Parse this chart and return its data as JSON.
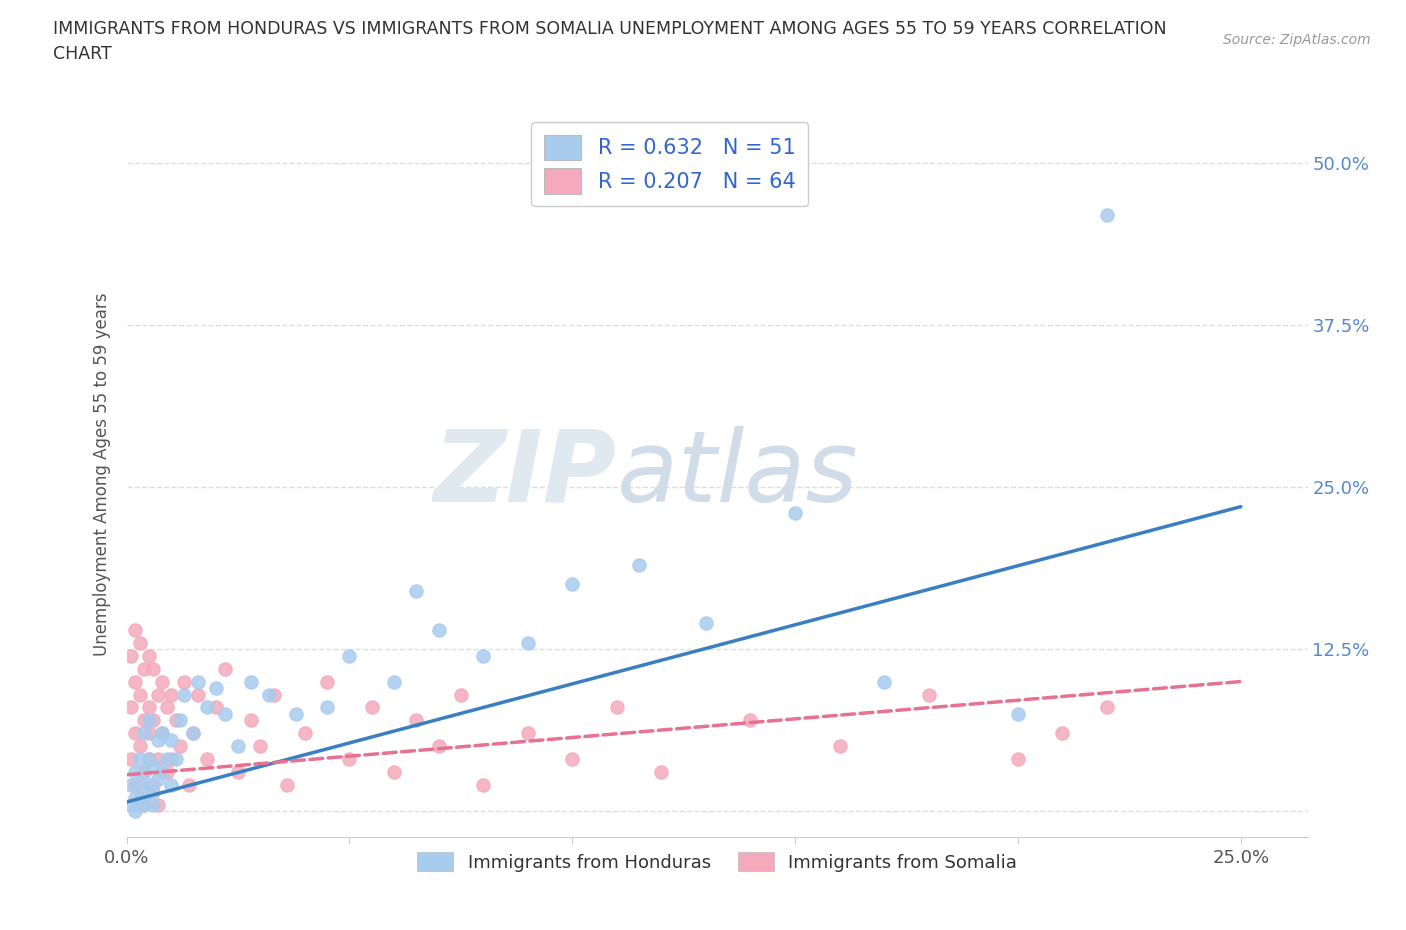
{
  "title_line1": "IMMIGRANTS FROM HONDURAS VS IMMIGRANTS FROM SOMALIA UNEMPLOYMENT AMONG AGES 55 TO 59 YEARS CORRELATION",
  "title_line2": "CHART",
  "source": "Source: ZipAtlas.com",
  "ylabel": "Unemployment Among Ages 55 to 59 years",
  "xlim": [
    0.0,
    0.265
  ],
  "ylim": [
    -0.02,
    0.54
  ],
  "R_honduras": 0.632,
  "N_honduras": 51,
  "R_somalia": 0.207,
  "N_somalia": 64,
  "honduras_color": "#A8CCEE",
  "somalia_color": "#F4AABC",
  "trend_honduras_color": "#3A7FC1",
  "trend_somalia_color": "#E87090",
  "legend_label_honduras": "Immigrants from Honduras",
  "legend_label_somalia": "Immigrants from Somalia",
  "background_color": "#FFFFFF",
  "grid_color": "#DDDDDD",
  "honduras_x": [
    0.001,
    0.001,
    0.002,
    0.002,
    0.002,
    0.003,
    0.003,
    0.003,
    0.004,
    0.004,
    0.004,
    0.004,
    0.005,
    0.005,
    0.005,
    0.006,
    0.006,
    0.006,
    0.007,
    0.007,
    0.008,
    0.008,
    0.009,
    0.01,
    0.01,
    0.011,
    0.012,
    0.013,
    0.015,
    0.016,
    0.018,
    0.02,
    0.022,
    0.025,
    0.028,
    0.032,
    0.038,
    0.045,
    0.05,
    0.06,
    0.065,
    0.07,
    0.08,
    0.09,
    0.1,
    0.115,
    0.13,
    0.15,
    0.17,
    0.2,
    0.22
  ],
  "honduras_y": [
    0.005,
    0.02,
    0.01,
    0.03,
    0.0,
    0.02,
    0.005,
    0.04,
    0.01,
    0.03,
    0.005,
    0.06,
    0.02,
    0.04,
    0.07,
    0.015,
    0.035,
    0.005,
    0.025,
    0.055,
    0.03,
    0.06,
    0.04,
    0.02,
    0.055,
    0.04,
    0.07,
    0.09,
    0.06,
    0.1,
    0.08,
    0.095,
    0.075,
    0.05,
    0.1,
    0.09,
    0.075,
    0.08,
    0.12,
    0.1,
    0.17,
    0.14,
    0.12,
    0.13,
    0.175,
    0.19,
    0.145,
    0.23,
    0.1,
    0.075,
    0.46
  ],
  "somalia_x": [
    0.001,
    0.001,
    0.001,
    0.002,
    0.002,
    0.002,
    0.002,
    0.003,
    0.003,
    0.003,
    0.003,
    0.004,
    0.004,
    0.004,
    0.004,
    0.005,
    0.005,
    0.005,
    0.005,
    0.006,
    0.006,
    0.006,
    0.007,
    0.007,
    0.007,
    0.008,
    0.008,
    0.009,
    0.009,
    0.01,
    0.01,
    0.011,
    0.012,
    0.013,
    0.014,
    0.015,
    0.016,
    0.018,
    0.02,
    0.022,
    0.025,
    0.028,
    0.03,
    0.033,
    0.036,
    0.04,
    0.045,
    0.05,
    0.055,
    0.06,
    0.065,
    0.07,
    0.075,
    0.08,
    0.09,
    0.1,
    0.11,
    0.12,
    0.14,
    0.16,
    0.18,
    0.2,
    0.21,
    0.22
  ],
  "somalia_y": [
    0.04,
    0.08,
    0.12,
    0.02,
    0.06,
    0.1,
    0.14,
    0.01,
    0.05,
    0.09,
    0.13,
    0.03,
    0.07,
    0.11,
    0.005,
    0.04,
    0.08,
    0.12,
    0.06,
    0.02,
    0.07,
    0.11,
    0.04,
    0.09,
    0.005,
    0.06,
    0.1,
    0.03,
    0.08,
    0.04,
    0.09,
    0.07,
    0.05,
    0.1,
    0.02,
    0.06,
    0.09,
    0.04,
    0.08,
    0.11,
    0.03,
    0.07,
    0.05,
    0.09,
    0.02,
    0.06,
    0.1,
    0.04,
    0.08,
    0.03,
    0.07,
    0.05,
    0.09,
    0.02,
    0.06,
    0.04,
    0.08,
    0.03,
    0.07,
    0.05,
    0.09,
    0.04,
    0.06,
    0.08
  ],
  "trend_h_x0": 0.0,
  "trend_h_y0": 0.007,
  "trend_h_x1": 0.25,
  "trend_h_y1": 0.235,
  "trend_s_x0": 0.0,
  "trend_s_y0": 0.028,
  "trend_s_x1": 0.25,
  "trend_s_y1": 0.1
}
